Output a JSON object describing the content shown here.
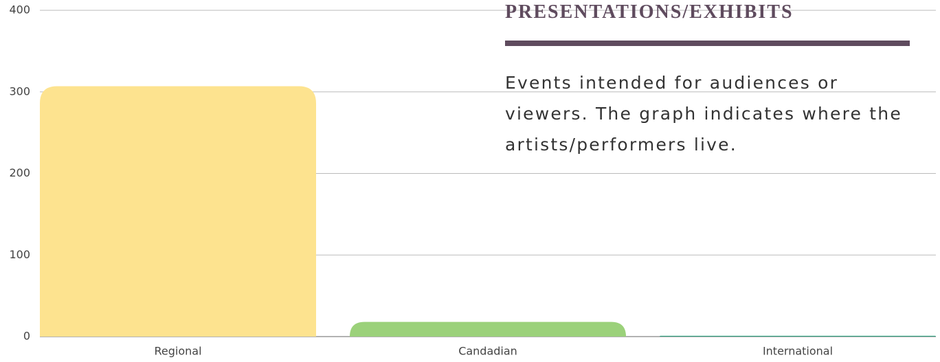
{
  "chart_data": {
    "type": "bar",
    "title": "PRESENTATIONS/EXHIBITS",
    "subtitle": "Events intended for audiences or viewers. The graph indicates where the artists/performers live.",
    "categories": [
      "Regional",
      "Candadian",
      "International"
    ],
    "values": [
      307,
      18,
      1
    ],
    "colors": [
      "#fde38f",
      "#9bd17a",
      "#2e9e7e"
    ],
    "ylim": [
      0,
      400
    ],
    "yticks": [
      0,
      100,
      200,
      300,
      400
    ],
    "grid": true
  }
}
